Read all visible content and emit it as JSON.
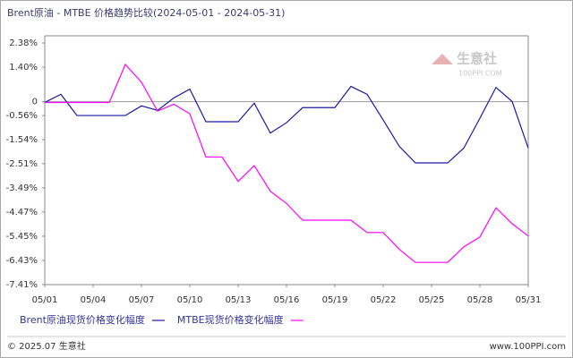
{
  "chart_data": {
    "type": "line",
    "title": "Brent原油 - MTBE 价格趋势比较(2024-05-01 - 2024-05-31)",
    "categories": [
      "05/01",
      null,
      null,
      "05/04",
      null,
      null,
      "05/07",
      null,
      null,
      "05/10",
      null,
      null,
      "05/13",
      null,
      null,
      "05/16",
      null,
      null,
      "05/19",
      null,
      null,
      "05/22",
      null,
      null,
      "05/25",
      null,
      null,
      "05/28",
      null,
      null,
      "05/31"
    ],
    "series": [
      {
        "name": "Brent原油现货价格变化幅度",
        "color": "#1a1aa6",
        "values": [
          -0.03,
          0.3,
          -0.56,
          -0.56,
          -0.56,
          -0.56,
          -0.17,
          -0.35,
          0.15,
          0.51,
          -0.81,
          -0.81,
          -0.81,
          -0.06,
          -1.27,
          -0.85,
          -0.24,
          -0.24,
          -0.24,
          0.62,
          0.3,
          -0.74,
          -1.81,
          -2.48,
          -2.48,
          -2.48,
          -1.88,
          -0.67,
          0.58,
          0.01,
          -1.88
        ]
      },
      {
        "name": "MTBE现货价格变化幅度",
        "color": "#ff00ff",
        "values": [
          -0.03,
          -0.03,
          -0.03,
          -0.03,
          -0.03,
          1.51,
          0.79,
          -0.38,
          -0.1,
          -0.49,
          -2.24,
          -2.24,
          -3.23,
          -2.59,
          -3.63,
          -4.12,
          -4.8,
          -4.8,
          -4.8,
          -4.8,
          -5.3,
          -5.3,
          -5.98,
          -6.51,
          -6.51,
          -6.51,
          -5.88,
          -5.48,
          -4.3,
          -4.94,
          -5.44
        ]
      }
    ],
    "ylim": [
      -7.41,
      2.38
    ],
    "yticks": [
      {
        "value": 2.38,
        "label": "2.38%"
      },
      {
        "value": 1.4,
        "label": "1.40%"
      },
      0,
      {
        "value": -0.56,
        "label": "-0.56%"
      },
      {
        "value": -1.54,
        "label": "-1.54%"
      },
      {
        "value": -2.51,
        "label": "-2.51%"
      },
      {
        "value": -3.49,
        "label": "-3.49%"
      },
      {
        "value": -4.47,
        "label": "-4.47%"
      },
      {
        "value": -5.45,
        "label": "-5.45%"
      },
      {
        "value": -6.43,
        "label": "-6.43%"
      },
      {
        "value": -7.41,
        "label": "-7.41%"
      }
    ],
    "zero_line": true,
    "grid": false
  },
  "watermark": {
    "name": "生意社",
    "url": "100PPI.COM"
  },
  "footer": {
    "left": "© 2025.07 生意社",
    "right": "www.100PPI.com"
  }
}
